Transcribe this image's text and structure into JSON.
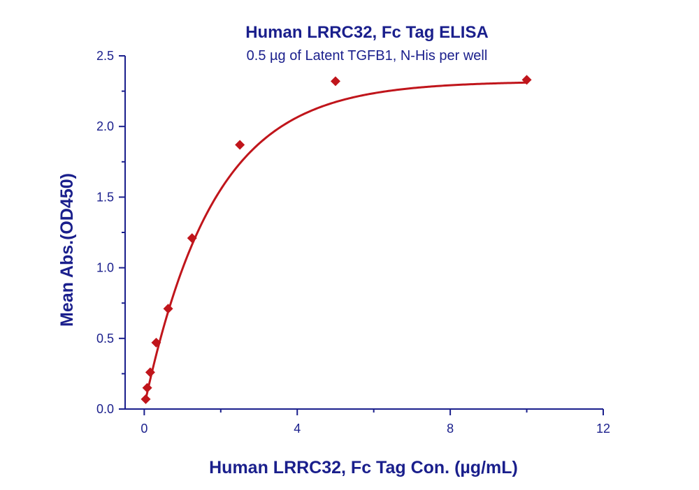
{
  "chart_data": {
    "type": "scatter",
    "title": "Human LRRC32, Fc Tag ELISA",
    "subtitle": "0.5 µg of Latent TGFB1, N-His per well",
    "xlabel": "Human LRRC32, Fc Tag Con. (µg/mL)",
    "ylabel": "Mean Abs.(OD450)",
    "xlim": [
      -0.5,
      12
    ],
    "ylim": [
      0,
      2.5
    ],
    "x_ticks": [
      0,
      4,
      8,
      12
    ],
    "x_tick_labels": [
      "0",
      "4",
      "8",
      "12"
    ],
    "y_ticks": [
      0,
      0.5,
      1.0,
      1.5,
      2.0,
      2.5
    ],
    "y_tick_labels": [
      "0.0",
      "0.5",
      "1.0",
      "1.5",
      "2.0",
      "2.5"
    ],
    "grid": false,
    "legend": "none",
    "series": [
      {
        "x": [
          0.039,
          0.078,
          0.156,
          0.3125,
          0.625,
          1.25,
          2.5,
          5,
          10
        ],
        "y": [
          0.07,
          0.15,
          0.26,
          0.47,
          0.71,
          1.21,
          1.87,
          2.32,
          2.33
        ],
        "marker": "diamond",
        "color": "#c0151b",
        "fit_curve": {
          "type": "exponential-saturation",
          "bottom": 0.02,
          "top": 2.32,
          "k": 0.55
        }
      }
    ],
    "colors": {
      "axis": "#1a1f8c",
      "text": "#1a1f8c",
      "series": "#c0151b"
    }
  }
}
